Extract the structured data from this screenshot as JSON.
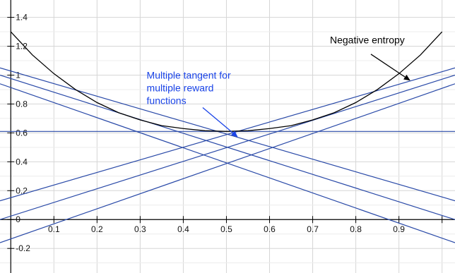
{
  "chart_data": {
    "type": "line",
    "title": "",
    "xlabel": "",
    "ylabel": "",
    "xlim": [
      -0.025,
      1.03
    ],
    "ylim": [
      -0.37,
      1.52
    ],
    "grid": true,
    "x_ticks": [
      {
        "value": 0.1,
        "label": "0.1"
      },
      {
        "value": 0.2,
        "label": "0.2"
      },
      {
        "value": 0.3,
        "label": "0.3"
      },
      {
        "value": 0.4,
        "label": "0.4"
      },
      {
        "value": 0.5,
        "label": "0.5"
      },
      {
        "value": 0.6,
        "label": "0.6"
      },
      {
        "value": 0.7,
        "label": "0.7"
      },
      {
        "value": 0.8,
        "label": "0.8"
      },
      {
        "value": 0.9,
        "label": "0.9"
      }
    ],
    "y_ticks": [
      {
        "value": 1.4,
        "label": "1.4"
      },
      {
        "value": 1.2,
        "label": "1.2"
      },
      {
        "value": 1.0,
        "label": "1"
      },
      {
        "value": 0.8,
        "label": "0.8"
      },
      {
        "value": 0.6,
        "label": "0.6"
      },
      {
        "value": 0.4,
        "label": "0.4"
      },
      {
        "value": 0.2,
        "label": "0.2"
      },
      {
        "value": 0.0,
        "label": "0"
      },
      {
        "value": -0.2,
        "label": "-0.2"
      }
    ],
    "curve": {
      "color": "#000000",
      "x": [
        0.0,
        0.05,
        0.1,
        0.15,
        0.2,
        0.25,
        0.3,
        0.35,
        0.4,
        0.45,
        0.5,
        0.55,
        0.6,
        0.65,
        0.7,
        0.75,
        0.8,
        0.85,
        0.9,
        0.95,
        1.0
      ],
      "y": [
        1.3,
        1.14,
        1.01,
        0.9,
        0.81,
        0.74,
        0.69,
        0.65,
        0.63,
        0.615,
        0.61,
        0.615,
        0.63,
        0.65,
        0.69,
        0.74,
        0.81,
        0.9,
        1.01,
        1.14,
        1.3
      ]
    },
    "tangent_lines": {
      "color": "#2a4aa8",
      "lines": [
        {
          "x": [
            -0.025,
            1.03
          ],
          "y": [
            0.61,
            0.61
          ]
        },
        {
          "x": [
            -0.025,
            1.03
          ],
          "y": [
            0.13,
            1.05
          ]
        },
        {
          "x": [
            -0.025,
            1.03
          ],
          "y": [
            1.05,
            0.13
          ]
        },
        {
          "x": [
            -0.025,
            1.03
          ],
          "y": [
            0.0,
            1.0
          ]
        },
        {
          "x": [
            -0.025,
            1.03
          ],
          "y": [
            1.0,
            0.0
          ]
        },
        {
          "x": [
            -0.025,
            1.03
          ],
          "y": [
            -0.16,
            0.94
          ]
        },
        {
          "x": [
            -0.025,
            1.03
          ],
          "y": [
            0.94,
            -0.16
          ]
        }
      ]
    },
    "annotations": [
      {
        "lines": [
          "Negative entropy"
        ],
        "color": "#000000",
        "anchor": {
          "x": 0.74,
          "y": 1.22
        },
        "arrow_from": {
          "x": 0.835,
          "y": 1.145
        },
        "arrow_to": {
          "x": 0.925,
          "y": 0.965
        }
      },
      {
        "lines": [
          "Multiple tangent for",
          "multiple reward",
          "functions"
        ],
        "color": "#1a44e8",
        "anchor": {
          "x": 0.315,
          "y": 0.975
        },
        "arrow_from": {
          "x": 0.445,
          "y": 0.775
        },
        "arrow_to": {
          "x": 0.525,
          "y": 0.575
        }
      }
    ]
  }
}
